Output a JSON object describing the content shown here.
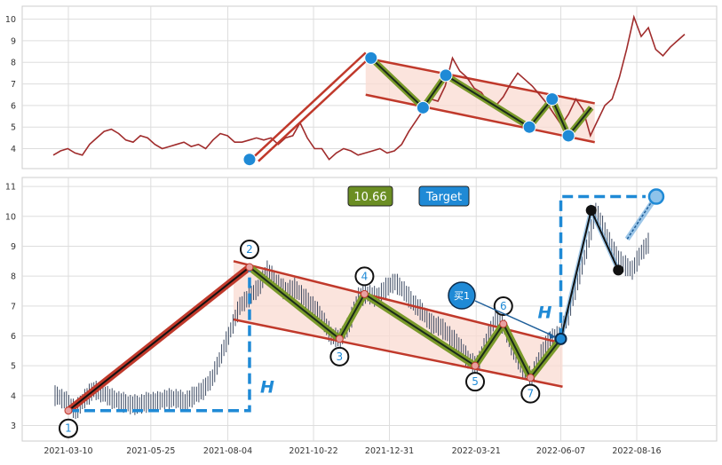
{
  "chart_data": [
    {
      "type": "line",
      "panel": "top",
      "ylim": [
        3.2,
        10.6
      ],
      "yticks": [
        "4",
        "5",
        "6",
        "7",
        "8",
        "9",
        "10"
      ],
      "grid": true,
      "colors": {
        "line": "#a02c2c",
        "channel": "#c0392b",
        "fill": "#fadbd2",
        "zigzag": "#7a9a2a",
        "marker": "#1f8ad6"
      },
      "series": [
        {
          "values": [
            3.7,
            3.9,
            4.0,
            3.8,
            3.7,
            4.2,
            4.5,
            4.8,
            4.9,
            4.7,
            4.4,
            4.3,
            4.6,
            4.5,
            4.2,
            4.0,
            4.1,
            4.2,
            4.3,
            4.1,
            4.2,
            4.0,
            4.4,
            4.7,
            4.6,
            4.3,
            4.3,
            4.4,
            4.5,
            4.4,
            4.5,
            4.2,
            4.5,
            4.6,
            5.2,
            4.5,
            4.0,
            4.0,
            3.5,
            3.8,
            4.0,
            3.9,
            3.7,
            3.8,
            3.9,
            4.0,
            3.8,
            3.9,
            4.2,
            4.8,
            5.3,
            5.8,
            6.3,
            6.2,
            6.9,
            8.2,
            7.6,
            7.3,
            6.8,
            6.6,
            6.1,
            6.0,
            6.4,
            7.0,
            7.5,
            7.2,
            6.9,
            6.5,
            6.1,
            5.6,
            5.1,
            5.6,
            6.3,
            5.8,
            4.6,
            5.3,
            6.0,
            6.3,
            7.3,
            8.6,
            10.1,
            9.2,
            9.6,
            8.6,
            8.3,
            8.7,
            9.0,
            9.3
          ]
        }
      ],
      "zigzag_points": [
        {
          "x": "2021-08-24",
          "y": 3.5
        },
        {
          "x": "2021-12-14",
          "y": 8.2
        },
        {
          "x": "2022-01-31",
          "y": 5.9
        },
        {
          "x": "2022-02-21",
          "y": 7.4
        },
        {
          "x": "2022-05-09",
          "y": 5.0
        },
        {
          "x": "2022-05-30",
          "y": 6.3
        },
        {
          "x": "2022-06-14",
          "y": 4.6
        },
        {
          "x": "2022-07-05",
          "y": 5.9
        }
      ],
      "channel": {
        "upper": [
          8.2,
          6.1
        ],
        "lower": [
          6.5,
          4.3
        ]
      }
    },
    {
      "type": "candlestick",
      "panel": "bottom",
      "x_ticks": [
        "2021-03-10",
        "2021-05-25",
        "2021-08-04",
        "2021-10-22",
        "2021-12-31",
        "2022-03-21",
        "2022-06-07",
        "2022-08-16"
      ],
      "yticks": [
        "3",
        "4",
        "5",
        "6",
        "7",
        "8",
        "9",
        "10",
        "11"
      ],
      "ylim": [
        2.6,
        11.3
      ],
      "grid": true,
      "colors": {
        "candle": "#2b3a55",
        "trend": "#c0392b",
        "fill": "#fadbd2",
        "zigzag": "#7a9a2a",
        "marker": "#1f8ad6",
        "dash": "#1f8ad6"
      },
      "series": [
        {
          "values": [
            4.0,
            3.8,
            3.5,
            3.9,
            4.2,
            4.1,
            3.9,
            3.8,
            3.7,
            3.7,
            3.8,
            3.8,
            3.9,
            3.9,
            3.8,
            4.0,
            4.2,
            4.6,
            5.4,
            6.2,
            7.0,
            7.3,
            7.6,
            8.2,
            7.8,
            7.5,
            7.6,
            7.3,
            7.0,
            6.6,
            6.0,
            5.9,
            6.4,
            7.3,
            7.4,
            7.3,
            7.6,
            7.8,
            7.5,
            7.1,
            6.8,
            6.4,
            6.3,
            6.0,
            5.7,
            5.2,
            5.0,
            5.8,
            6.6,
            6.3,
            5.5,
            4.9,
            4.6,
            5.4,
            5.9,
            6.0,
            6.7,
            7.8,
            8.9,
            10.2,
            9.5,
            8.8,
            8.4,
            8.2,
            8.8,
            9.2
          ]
        }
      ],
      "pattern_points": [
        {
          "label": "1",
          "x": "2021-03-10",
          "y": 3.5
        },
        {
          "label": "2",
          "x": "2021-08-24",
          "y": 8.3
        },
        {
          "label": "3",
          "x": "2021-11-15",
          "y": 5.9
        },
        {
          "label": "4",
          "x": "2021-12-08",
          "y": 7.4
        },
        {
          "label": "5",
          "x": "2022-03-20",
          "y": 5.0
        },
        {
          "label": "6",
          "x": "2022-04-15",
          "y": 6.4
        },
        {
          "label": "7",
          "x": "2022-05-10",
          "y": 4.6
        }
      ],
      "breakout": {
        "x": "2022-06-07",
        "y": 5.9
      },
      "wave_points": [
        {
          "x": "2022-07-05",
          "y": 10.2
        },
        {
          "x": "2022-07-30",
          "y": 8.2
        }
      ],
      "target": {
        "x": "2022-09-03",
        "y": 10.66
      },
      "annotations": {
        "target_value": "10.66",
        "target_label": "Target",
        "buy_label": "买1",
        "height_label_1": "H",
        "height_label_2": "H"
      }
    }
  ]
}
